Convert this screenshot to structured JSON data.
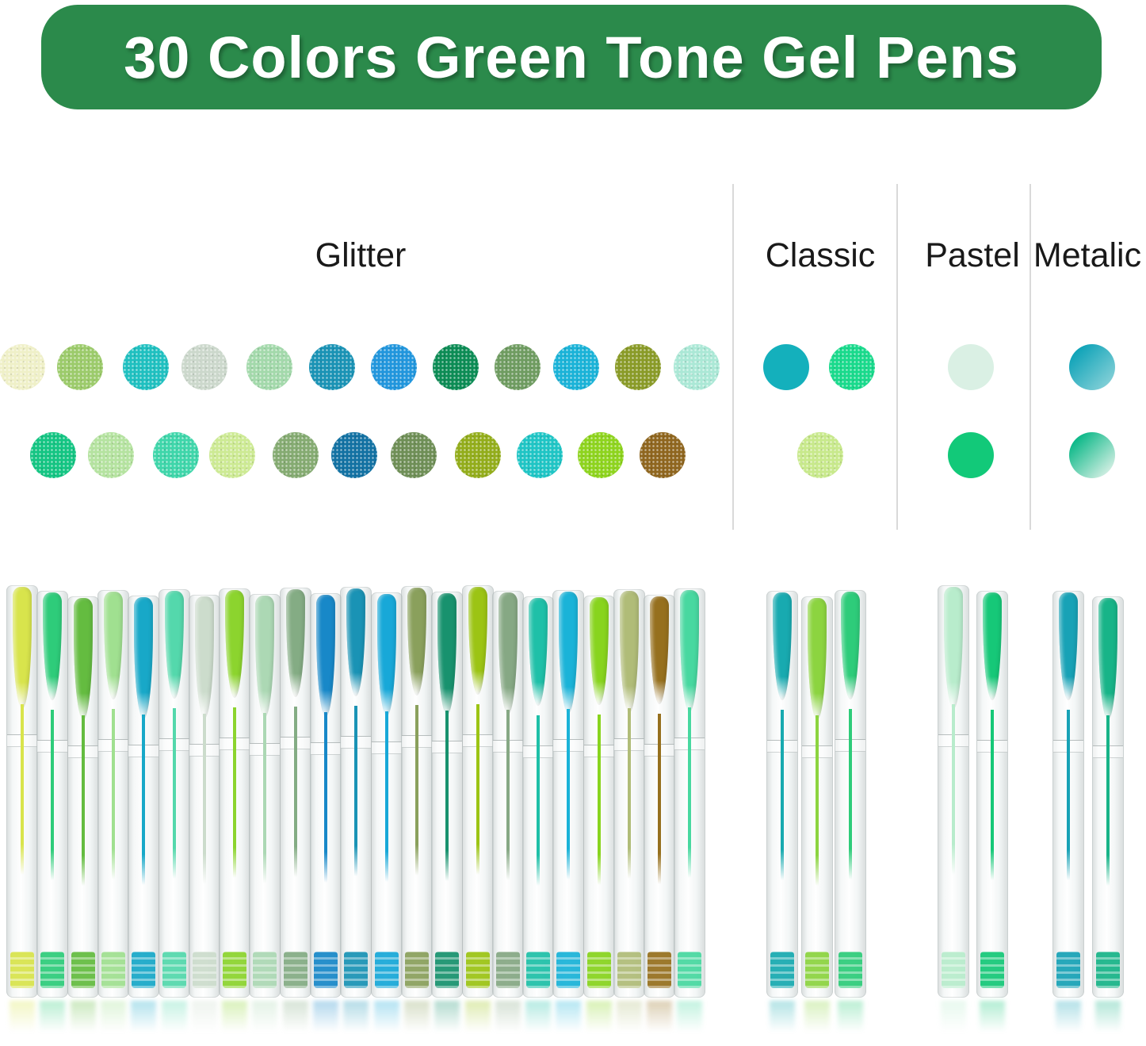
{
  "banner": {
    "text": "30 Colors Green Tone Gel Pens",
    "bg": "#2b8a4b",
    "fg": "#ffffff"
  },
  "section_labels": {
    "glitter": "Glitter",
    "classic": "Classic",
    "pastel": "Pastel",
    "metalic": "Metalic"
  },
  "swatches": {
    "glitter": {
      "texture": "glitter",
      "row1": [
        "#eff0c8",
        "#9ccb6b",
        "#1fc0c0",
        "#ccd8cc",
        "#a3d9ab",
        "#1a93b5",
        "#2196dd",
        "#0c8c55",
        "#6f9c61",
        "#1ab3d8",
        "#8a9b28",
        "#abe8d6"
      ],
      "row2": [
        "#14c583",
        "#b5e3a0",
        "#3fd6aa",
        "#cdea94",
        "#85ab72",
        "#1372a3",
        "#6f8f57",
        "#93ad1b",
        "#1fc5c5",
        "#8ed41e",
        "#8f661f"
      ]
    },
    "classic": {
      "row1": [
        {
          "color": "#14b0bc",
          "texture": "solid"
        },
        {
          "color": "#19da8c",
          "texture": "glitter"
        }
      ],
      "row2": [
        {
          "color": "#c8e98c",
          "texture": "glitter"
        }
      ]
    },
    "pastel": {
      "row1": [
        {
          "color": "#daf0e4",
          "texture": "solid"
        }
      ],
      "row2": [
        {
          "color": "#12c979",
          "texture": "solid"
        }
      ]
    },
    "metalic": {
      "row1": [
        {
          "color": "#0fa3b8",
          "color2": "#8fd4da",
          "texture": "gradient"
        }
      ],
      "row2": [
        {
          "color": "#0cb888",
          "color2": "#e6f4ec",
          "texture": "gradient"
        }
      ]
    }
  },
  "pens": {
    "glitter": [
      "#d8e44c",
      "#2ecc7a",
      "#64bc40",
      "#a0e090",
      "#18a8c8",
      "#54d8ac",
      "#ccdccc",
      "#8cd42e",
      "#acd8b4",
      "#84ac84",
      "#1888c8",
      "#1a93b5",
      "#18a8d8",
      "#8aa05c",
      "#18926e",
      "#9cc414",
      "#86a884",
      "#1fc0a8",
      "#1ab3d8",
      "#88d41e",
      "#b0bc78",
      "#96701e",
      "#48d8a0"
    ],
    "classic": [
      "#18aab0",
      "#8cd440",
      "#2ecc7a"
    ],
    "pastel": [
      "#b8eccc",
      "#16c878"
    ],
    "metalic": [
      "#18a2b6",
      "#18b488"
    ]
  }
}
